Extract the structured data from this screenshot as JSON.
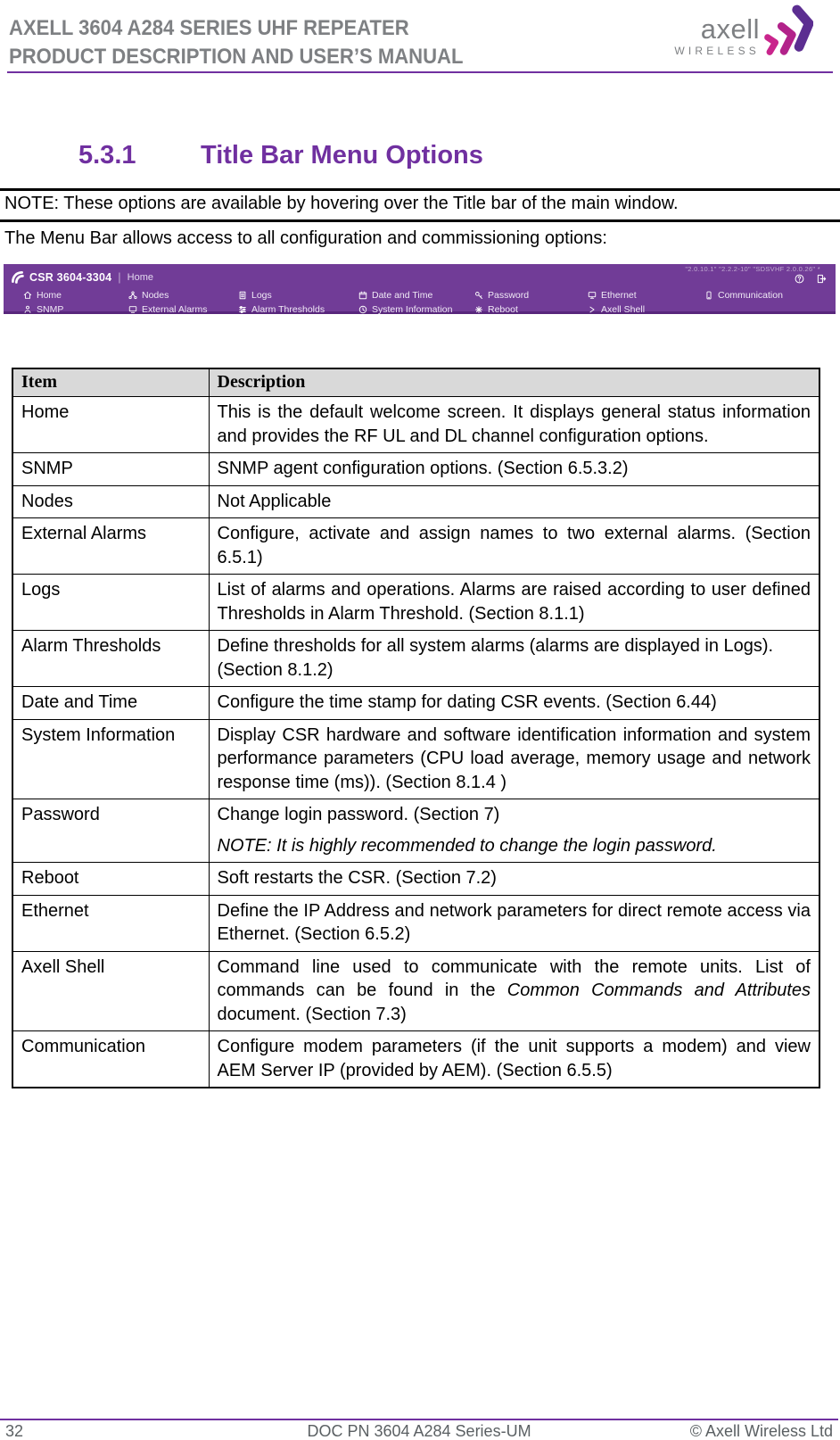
{
  "colors": {
    "accent": "#7030A0",
    "bar": "#713C97",
    "bar-dark": "#58267C",
    "brand-purple": "#5C2E91",
    "brand-magenta": "#B2228A",
    "brand-pink": "#C9258C",
    "header-gray": "#7E8083",
    "footer-gray": "#5B6063",
    "table-header-bg": "#D9D9D9"
  },
  "header": {
    "line1": "AXELL 3604 A284 SERIES UHF REPEATER",
    "line2": "PRODUCT DESCRIPTION AND USER’S MANUAL",
    "logo_text": "axell",
    "logo_subtext": "WIRELESS"
  },
  "section": {
    "number": "5.3.1",
    "title": "Title Bar Menu Options"
  },
  "note_text": "NOTE: These options are available by hovering over the Title bar of the main window.",
  "intro_text": "The Menu Bar allows access to all configuration and commissioning options:",
  "icons": {
    "brand": "brand-swoosh-icon",
    "help": "help-icon",
    "exit": "exit-icon"
  },
  "menu": {
    "brand": "CSR 3604-3304",
    "divider": "|",
    "active_page": "Home",
    "version_text": "\"2.0.10.1\" \"2.2.2-10\" \"SDSVHF 2.0.0.26\" *",
    "columns": [
      {
        "items": [
          {
            "icon": "home-icon",
            "label": "Home"
          },
          {
            "icon": "snmp-icon",
            "label": "SNMP"
          }
        ]
      },
      {
        "items": [
          {
            "icon": "nodes-icon",
            "label": "Nodes"
          },
          {
            "icon": "external-alarms-icon",
            "label": "External Alarms"
          }
        ]
      },
      {
        "items": [
          {
            "icon": "logs-icon",
            "label": "Logs"
          },
          {
            "icon": "alarm-thresholds-icon",
            "label": "Alarm Thresholds"
          }
        ]
      },
      {
        "items": [
          {
            "icon": "date-time-icon",
            "label": "Date and Time"
          },
          {
            "icon": "system-info-icon",
            "label": "System Information"
          }
        ]
      },
      {
        "items": [
          {
            "icon": "password-icon",
            "label": "Password"
          },
          {
            "icon": "reboot-icon",
            "label": "Reboot"
          }
        ]
      },
      {
        "items": [
          {
            "icon": "ethernet-icon",
            "label": "Ethernet"
          },
          {
            "icon": "axell-shell-icon",
            "label": "Axell Shell"
          }
        ]
      },
      {
        "items": [
          {
            "icon": "communication-icon",
            "label": "Communication"
          }
        ]
      }
    ]
  },
  "table": {
    "headers": [
      "Item",
      "Description"
    ],
    "rows": [
      {
        "item": "Home",
        "paragraphs": [
          {
            "segments": [
              {
                "text": "This is the default welcome screen. It displays general status information and provides the RF UL and DL channel configuration options."
              }
            ]
          }
        ]
      },
      {
        "item": "SNMP",
        "paragraphs": [
          {
            "segments": [
              {
                "text": "SNMP agent configuration options. (Section 6.5.3.2)"
              }
            ]
          }
        ]
      },
      {
        "item": "Nodes",
        "paragraphs": [
          {
            "segments": [
              {
                "text": "Not Applicable"
              }
            ]
          }
        ]
      },
      {
        "item": "External Alarms",
        "paragraphs": [
          {
            "segments": [
              {
                "text": "Configure, activate and assign names to two external alarms. (Section 6.5.1)"
              }
            ]
          }
        ]
      },
      {
        "item": "Logs",
        "paragraphs": [
          {
            "segments": [
              {
                "text": "List of alarms and operations. Alarms are raised according to user defined Thresholds in Alarm Threshold. (Section 8.1.1)"
              }
            ]
          }
        ]
      },
      {
        "item": "Alarm Thresholds",
        "paragraphs": [
          {
            "segments": [
              {
                "text": "Define thresholds for all system alarms (alarms are displayed in Logs)."
              }
            ]
          },
          {
            "segments": [
              {
                "text": "(Section 8.1.2)"
              }
            ]
          }
        ]
      },
      {
        "item": "Date and Time",
        "paragraphs": [
          {
            "segments": [
              {
                "text": "Configure the time stamp for dating CSR events. (Section 6.44)"
              }
            ]
          }
        ]
      },
      {
        "item": "System Information",
        "paragraphs": [
          {
            "segments": [
              {
                "text": "Display CSR hardware and software identification information and system performance parameters (CPU load average, memory usage and network response time (ms)). (Section 8.1.4 )"
              }
            ]
          }
        ]
      },
      {
        "item": "Password",
        "paragraphs": [
          {
            "segments": [
              {
                "text": "Change login password. (Section 7)"
              }
            ]
          },
          {
            "gap": true,
            "segments": [
              {
                "text": "NOTE: It is highly recommended to change the login password.",
                "italic": true
              }
            ]
          }
        ]
      },
      {
        "item": "Reboot",
        "paragraphs": [
          {
            "segments": [
              {
                "text": "Soft restarts the CSR. (Section 7.2)"
              }
            ]
          }
        ]
      },
      {
        "item": "Ethernet",
        "paragraphs": [
          {
            "segments": [
              {
                "text": "Define the IP Address and network parameters for direct remote access via Ethernet. (Section 6.5.2)"
              }
            ]
          }
        ]
      },
      {
        "item": "Axell Shell",
        "paragraphs": [
          {
            "segments": [
              {
                "text": "Command line used to communicate with the remote units. List of commands can be found in the "
              },
              {
                "text": "Common Commands and Attributes",
                "italic": true
              },
              {
                "text": " document. (Section 7.3)"
              }
            ]
          }
        ]
      },
      {
        "item": "Communication",
        "paragraphs": [
          {
            "segments": [
              {
                "text": "Configure modem parameters (if the unit supports a modem) and view AEM Server IP (provided by AEM). (Section 6.5.5)"
              }
            ]
          }
        ]
      }
    ]
  },
  "footer": {
    "page_number": "32",
    "doc_number": "DOC PN 3604 A284 Series-UM",
    "copyright": "© Axell Wireless Ltd"
  }
}
